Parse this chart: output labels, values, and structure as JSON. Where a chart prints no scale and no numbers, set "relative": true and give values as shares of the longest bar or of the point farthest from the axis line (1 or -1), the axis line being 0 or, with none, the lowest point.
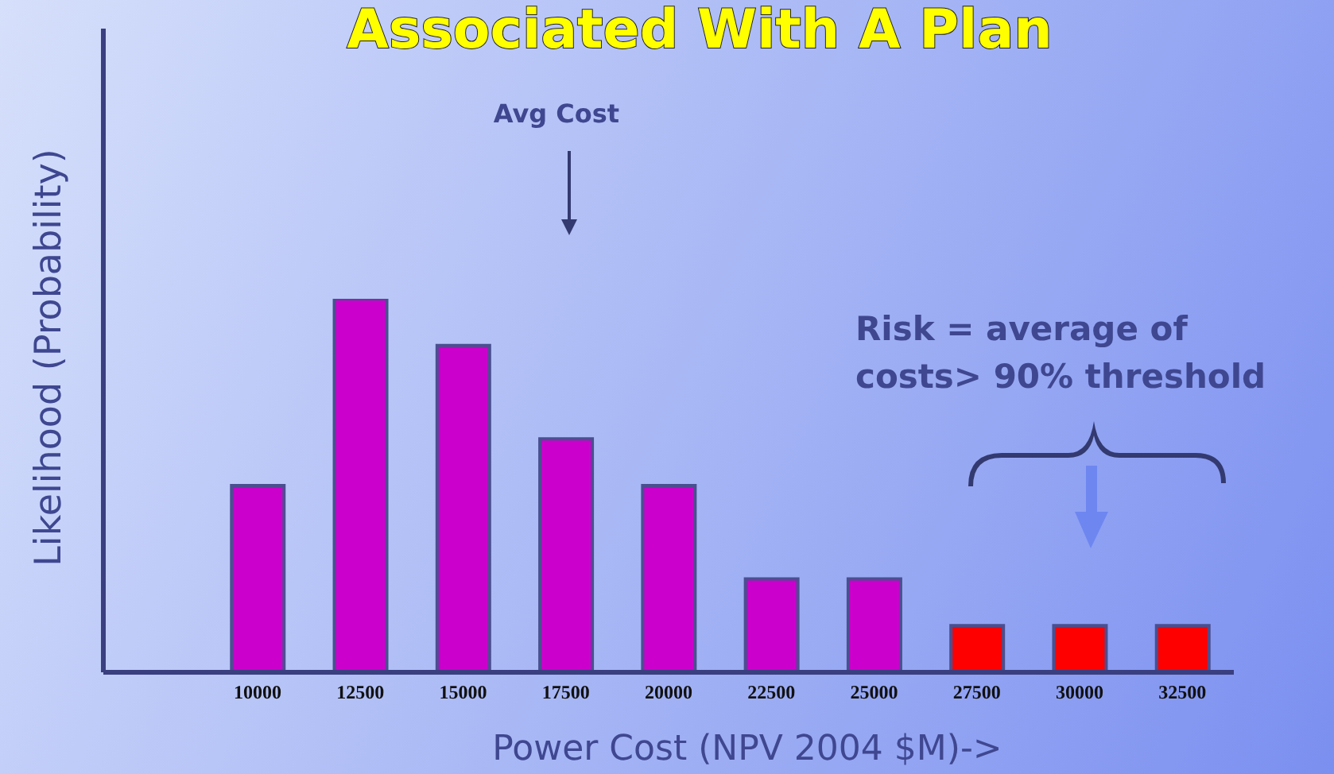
{
  "chart_data": {
    "type": "bar",
    "title": "Associated With A Plan",
    "xlabel": "Power Cost (NPV 2004 $M)->",
    "ylabel": "Likelihood (Probability)",
    "categories": [
      null,
      "10000",
      "12500",
      "15000",
      "17500",
      "20000",
      "22500",
      "25000",
      "27500",
      "30000",
      "32500"
    ],
    "values": [
      null,
      0.5,
      1,
      0.875,
      0.625,
      0.5,
      0.25,
      0.25,
      0.125,
      0.125,
      0.125
    ],
    "colors": [
      "#cc00cc",
      "#cc00cc",
      "#cc00cc",
      "#cc00cc",
      "#cc00cc",
      "#cc00cc",
      "#cc00cc",
      "#cc00cc",
      "#ff0000",
      "#ff0000",
      "#ff0000"
    ],
    "relative": true,
    "annotations": [
      "Avg Cost",
      "Risk = average of costs> 90% threshold"
    ]
  }
}
